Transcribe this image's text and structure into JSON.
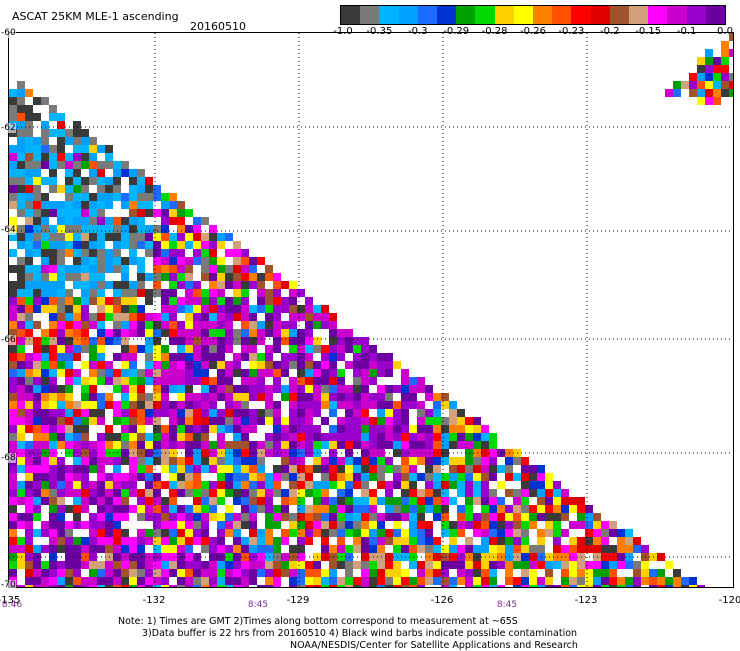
{
  "header": {
    "title": "ASCAT 25KM MLE-1 ascending",
    "date": "20160510"
  },
  "colorbar": {
    "colors": [
      "#3a3a3a",
      "#7a7a7a",
      "#00b4ff",
      "#00a0ff",
      "#1e6cff",
      "#0032d2",
      "#00a000",
      "#00d800",
      "#ffd000",
      "#ffff00",
      "#ff8000",
      "#ff5000",
      "#ff0000",
      "#e00000",
      "#a0522d",
      "#d2a07a",
      "#ff00ff",
      "#cc00cc",
      "#9900cc",
      "#6a00a0"
    ],
    "labels": [
      "-1.0",
      "-0.35",
      "-0.3",
      "-0.29",
      "-0.28",
      "-0.26",
      "-0.23",
      "-0.2",
      "-0.15",
      "-0.1",
      "0.0"
    ]
  },
  "axes": {
    "lat_labels": [
      "-60",
      "-62",
      "-64",
      "-66",
      "-68",
      "-70"
    ],
    "lon_labels": [
      "-135",
      "-132",
      "-129",
      "-126",
      "-123",
      "-120"
    ],
    "time_labels": [
      "8:46",
      "8:45",
      "8:45"
    ]
  },
  "notes": {
    "line1": "Note: 1) Times are GMT 2)Times along bottom correspond to measurement at ~65S",
    "line2": "3)Data buffer is 22 hrs from 20160510 4) Black wind barbs indicate possible contamination",
    "line3": "NOAA/NESDIS/Center for Satellite Applications and Research"
  }
}
